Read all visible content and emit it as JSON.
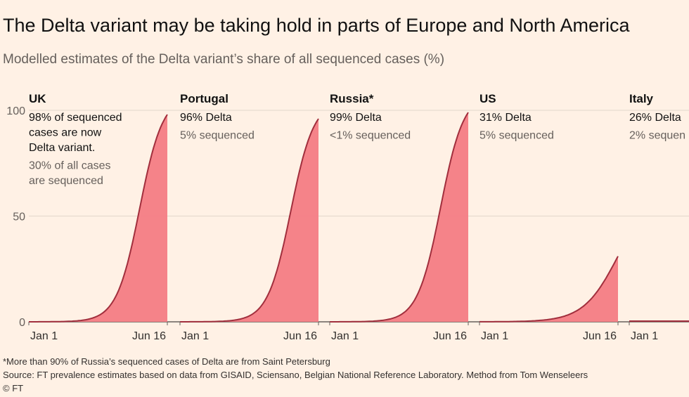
{
  "header": {
    "title": "The Delta variant may be taking hold in parts of Europe and North America",
    "subtitle": "Modelled estimates of the Delta variant’s share of all sequenced cases (%)"
  },
  "footer": {
    "note": "*More than 90% of Russia’s sequenced cases of Delta are from Saint Petersburg",
    "source": "Source: FT prevalence estimates based on data from GISAID, Sciensano, Belgian National Reference Laboratory. Method from Tom Wenseleers",
    "credit": "© FT"
  },
  "colors": {
    "background": "#fff1e5",
    "area": "#f47c84",
    "line": "#a12f3d"
  },
  "chart_data": {
    "type": "area",
    "layout": "small-multiples",
    "x": [
      "Jan 1",
      "Jun 16"
    ],
    "x_tick_labels": [
      "Jan 1",
      "Jun 16"
    ],
    "y_ticks": [
      0,
      50,
      100
    ],
    "ylim": [
      0,
      100
    ],
    "ylabel": "",
    "grid": true,
    "series": [
      {
        "name": "UK",
        "label_lines": [
          "98% of sequenced",
          "cases are now",
          "Delta variant."
        ],
        "sub_lines": [
          "30% of all cases",
          "are sequenced"
        ],
        "final_value": 98
      },
      {
        "name": "Portugal",
        "label_lines": [
          "96% Delta"
        ],
        "sub_lines": [
          "5% sequenced"
        ],
        "final_value": 96
      },
      {
        "name": "Russia*",
        "label_lines": [
          "99% Delta"
        ],
        "sub_lines": [
          "<1% sequenced"
        ],
        "final_value": 99
      },
      {
        "name": "US",
        "label_lines": [
          "31% Delta"
        ],
        "sub_lines": [
          "5% sequenced"
        ],
        "final_value": 31
      },
      {
        "name": "Italy",
        "label_lines": [
          "26% Delta"
        ],
        "sub_lines": [
          "2% sequen"
        ],
        "final_value": 26
      }
    ]
  }
}
